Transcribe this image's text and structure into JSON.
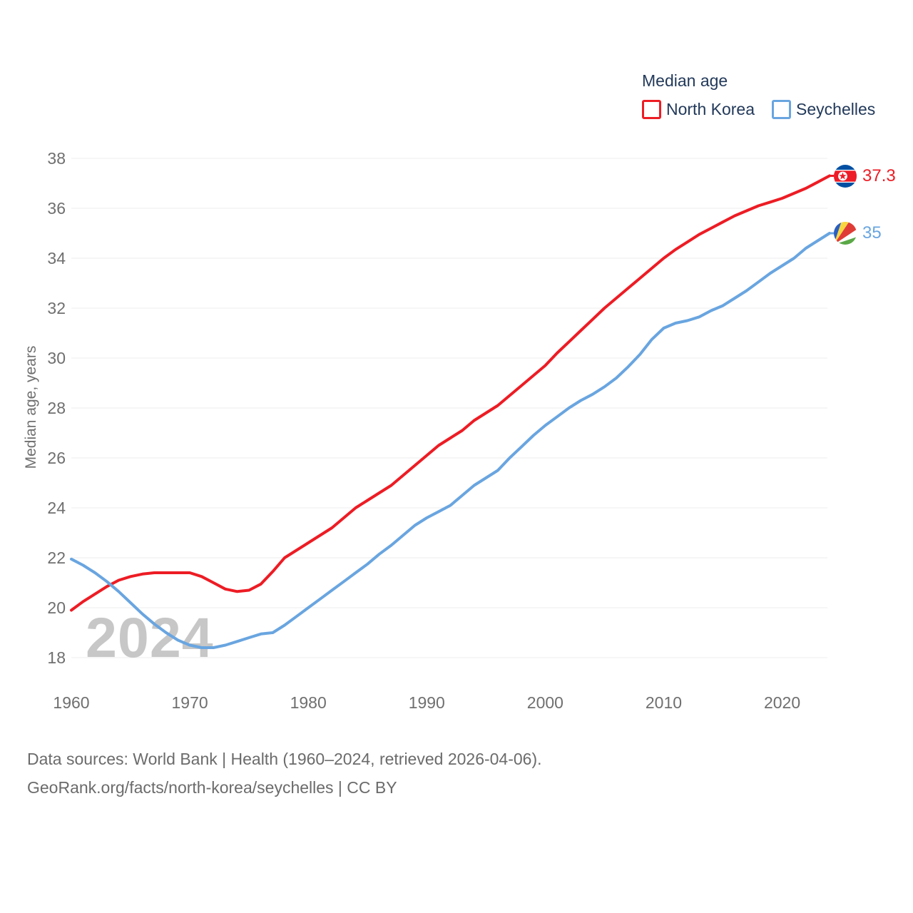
{
  "legend": {
    "title": "Median age",
    "series": [
      {
        "label": "North Korea"
      },
      {
        "label": "Seychelles"
      }
    ]
  },
  "watermark": "2024",
  "y_axis_title": "Median age, years",
  "end_labels": [
    {
      "value": "37.3",
      "flag": "north-korea-flag"
    },
    {
      "value": "35",
      "flag": "seychelles-flag"
    }
  ],
  "footer": {
    "line1": "Data sources: World Bank | Health (1960–2024, retrieved 2026-04-06).",
    "line2": "GeoRank.org/facts/north-korea/seychelles | CC BY"
  },
  "colors": {
    "north_korea": "#ed1c24",
    "seychelles": "#69a5e0",
    "grid": "#ececec",
    "tick_text": "#6f6f6f",
    "legend_text": "#22395a",
    "watermark": "#c7c7c7"
  },
  "chart_data": {
    "type": "line",
    "title": "Median age",
    "ylabel": "Median age, years",
    "grid": true,
    "legend_position": "top-right",
    "ylim": [
      17,
      39
    ],
    "x_range": [
      1960,
      2024
    ],
    "y_ticks": [
      18,
      20,
      22,
      24,
      26,
      28,
      30,
      32,
      34,
      36,
      38
    ],
    "x_ticks": [
      1960,
      1970,
      1980,
      1990,
      2000,
      2010,
      2020
    ],
    "years": [
      1960,
      1961,
      1962,
      1963,
      1964,
      1965,
      1966,
      1967,
      1968,
      1969,
      1970,
      1971,
      1972,
      1973,
      1974,
      1975,
      1976,
      1977,
      1978,
      1979,
      1980,
      1981,
      1982,
      1983,
      1984,
      1985,
      1986,
      1987,
      1988,
      1989,
      1990,
      1991,
      1992,
      1993,
      1994,
      1995,
      1996,
      1997,
      1998,
      1999,
      2000,
      2001,
      2002,
      2003,
      2004,
      2005,
      2006,
      2007,
      2008,
      2009,
      2010,
      2011,
      2012,
      2013,
      2014,
      2015,
      2016,
      2017,
      2018,
      2019,
      2020,
      2021,
      2022,
      2023,
      2024
    ],
    "series": [
      {
        "name": "North Korea",
        "color": "#ed1c24",
        "end_value": 37.3,
        "values": [
          19.9,
          20.25,
          20.55,
          20.85,
          21.1,
          21.25,
          21.35,
          21.4,
          21.4,
          21.4,
          21.4,
          21.25,
          21.0,
          20.75,
          20.65,
          20.7,
          20.95,
          21.45,
          22.0,
          22.3,
          22.6,
          22.9,
          23.2,
          23.6,
          24.0,
          24.3,
          24.6,
          24.9,
          25.3,
          25.7,
          26.1,
          26.5,
          26.8,
          27.1,
          27.5,
          27.8,
          28.1,
          28.5,
          28.9,
          29.3,
          29.7,
          30.2,
          30.65,
          31.1,
          31.55,
          32.0,
          32.4,
          32.8,
          33.2,
          33.6,
          34.0,
          34.35,
          34.65,
          34.95,
          35.2,
          35.45,
          35.7,
          35.9,
          36.1,
          36.25,
          36.4,
          36.6,
          36.8,
          37.05,
          37.3
        ]
      },
      {
        "name": "Seychelles",
        "color": "#69a5e0",
        "end_value": 35,
        "values": [
          21.95,
          21.7,
          21.4,
          21.05,
          20.65,
          20.2,
          19.75,
          19.35,
          19.0,
          18.7,
          18.5,
          18.4,
          18.4,
          18.5,
          18.65,
          18.8,
          18.95,
          19.0,
          19.3,
          19.65,
          20.0,
          20.35,
          20.7,
          21.05,
          21.4,
          21.75,
          22.15,
          22.5,
          22.9,
          23.3,
          23.6,
          23.85,
          24.1,
          24.5,
          24.9,
          25.2,
          25.5,
          26.0,
          26.45,
          26.9,
          27.3,
          27.65,
          28.0,
          28.3,
          28.55,
          28.85,
          29.2,
          29.65,
          30.15,
          30.75,
          31.2,
          31.4,
          31.5,
          31.65,
          31.9,
          32.1,
          32.4,
          32.7,
          33.05,
          33.4,
          33.7,
          34.0,
          34.4,
          34.7,
          35.0
        ]
      }
    ]
  }
}
